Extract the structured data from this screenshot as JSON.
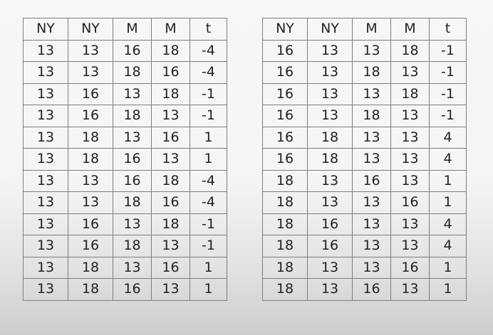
{
  "left_table": {
    "headers": [
      "NY",
      "NY",
      "M",
      "M",
      "t"
    ],
    "rows": [
      [
        "13",
        "13",
        "16",
        "18",
        "-4"
      ],
      [
        "13",
        "13",
        "18",
        "16",
        "-4"
      ],
      [
        "13",
        "16",
        "13",
        "18",
        "-1"
      ],
      [
        "13",
        "16",
        "18",
        "13",
        "-1"
      ],
      [
        "13",
        "18",
        "13",
        "16",
        "1"
      ],
      [
        "13",
        "18",
        "16",
        "13",
        "1"
      ],
      [
        "13",
        "13",
        "16",
        "18",
        "-4"
      ],
      [
        "13",
        "13",
        "18",
        "16",
        "-4"
      ],
      [
        "13",
        "16",
        "13",
        "18",
        "-1"
      ],
      [
        "13",
        "16",
        "18",
        "13",
        "-1"
      ],
      [
        "13",
        "18",
        "13",
        "16",
        "1"
      ],
      [
        "13",
        "18",
        "16",
        "13",
        "1"
      ]
    ]
  },
  "right_table": {
    "headers": [
      "NY",
      "NY",
      "M",
      "M",
      "t"
    ],
    "rows": [
      [
        "16",
        "13",
        "13",
        "18",
        "-1"
      ],
      [
        "16",
        "13",
        "18",
        "13",
        "-1"
      ],
      [
        "16",
        "13",
        "13",
        "18",
        "-1"
      ],
      [
        "16",
        "13",
        "18",
        "13",
        "-1"
      ],
      [
        "16",
        "18",
        "13",
        "13",
        "4"
      ],
      [
        "16",
        "18",
        "13",
        "13",
        "4"
      ],
      [
        "18",
        "13",
        "16",
        "13",
        "1"
      ],
      [
        "18",
        "13",
        "13",
        "16",
        "1"
      ],
      [
        "18",
        "16",
        "13",
        "13",
        "4"
      ],
      [
        "18",
        "16",
        "13",
        "13",
        "4"
      ],
      [
        "18",
        "13",
        "13",
        "16",
        "1"
      ],
      [
        "18",
        "13",
        "16",
        "13",
        "1"
      ]
    ]
  }
}
